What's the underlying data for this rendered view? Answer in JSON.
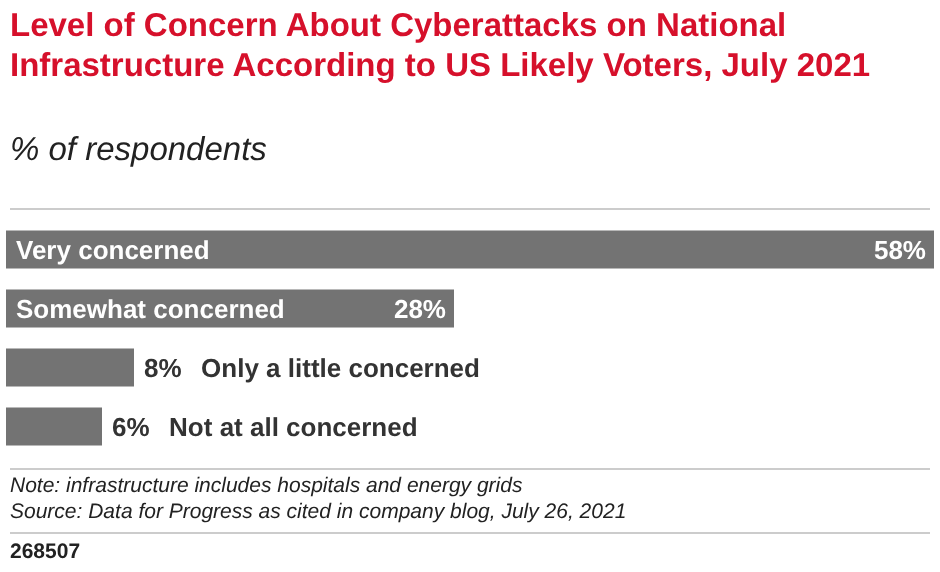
{
  "chart_data": {
    "type": "bar",
    "orientation": "horizontal",
    "title": "Level of Concern About Cyberattacks on National Infrastructure According to US Likely Voters, July 2021",
    "subtitle": "% of respondents",
    "categories": [
      "Very concerned",
      "Somewhat concerned",
      "Only a little concerned",
      "Not at all concerned"
    ],
    "values": [
      58,
      28,
      8,
      6
    ],
    "value_labels": [
      "58%",
      "28%",
      "8%",
      "6%"
    ],
    "color": "#737373",
    "annotations": [
      "Note: infrastructure includes hospitals and energy grids",
      "Source: Data for Progress as cited in company blog, July 26, 2021",
      "268507"
    ]
  }
}
